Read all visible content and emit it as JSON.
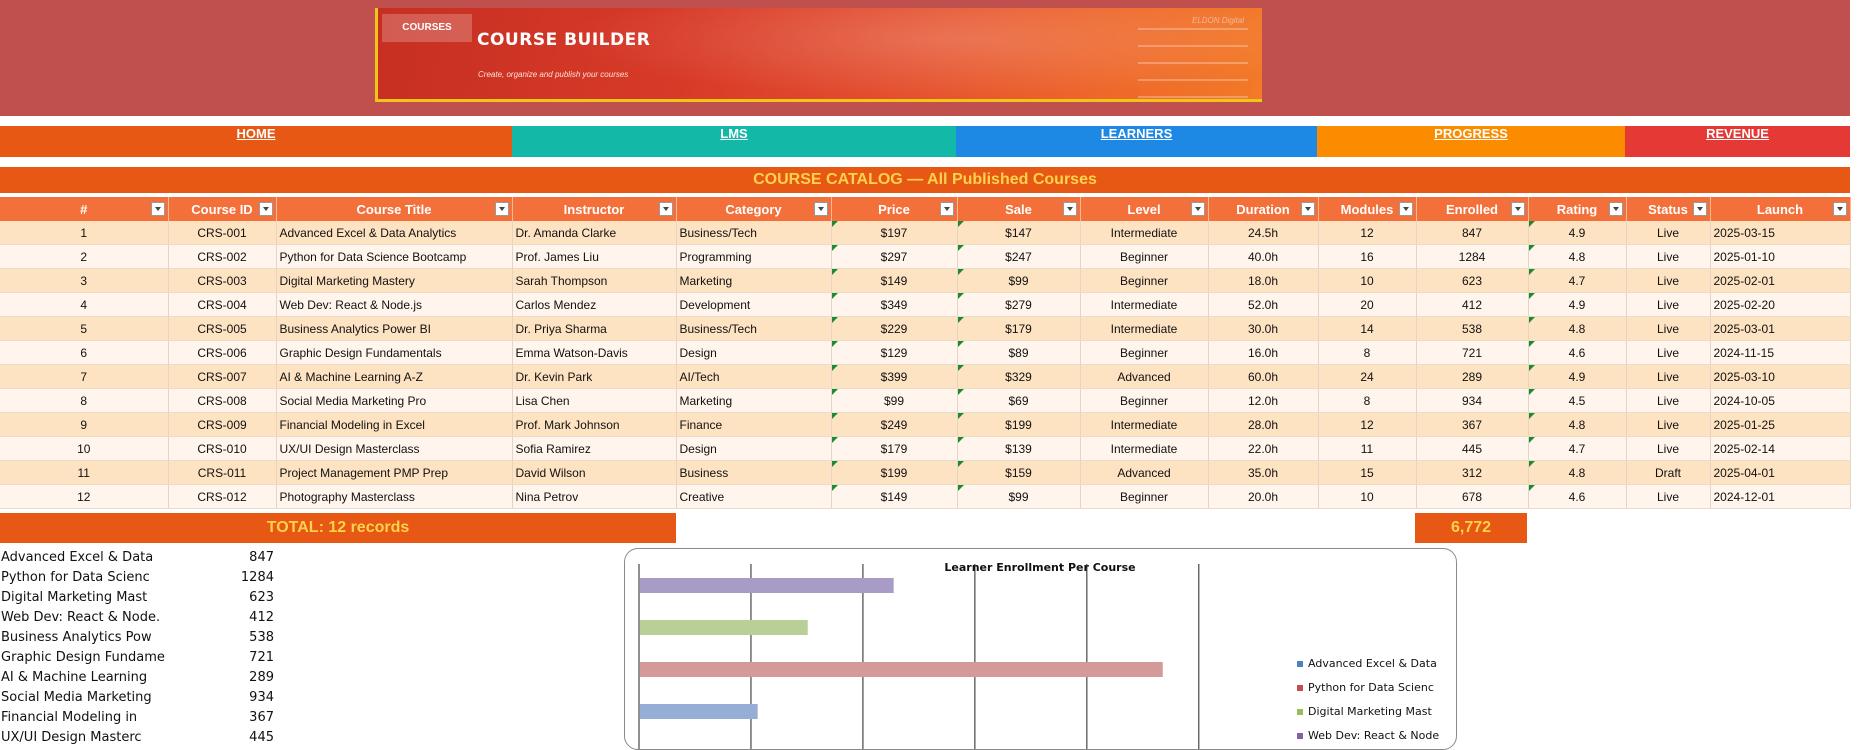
{
  "banner": {
    "tag": "COURSES",
    "title": "COURSE BUILDER",
    "subtitle": "Create, organize and publish your courses",
    "brand": "ELDON Digital"
  },
  "nav": [
    {
      "label": "HOME",
      "color": "#e75814"
    },
    {
      "label": "LMS",
      "color": "#14b8a6"
    },
    {
      "label": "LEARNERS",
      "color": "#1e88e5"
    },
    {
      "label": "PROGRESS",
      "color": "#fb8c00"
    },
    {
      "label": "REVENUE",
      "color": "#e53935"
    }
  ],
  "catalog_title": "COURSE CATALOG — All Published Courses",
  "columns": [
    "#",
    "Course ID",
    "Course Title",
    "Instructor",
    "Category",
    "Price",
    "Sale",
    "Level",
    "Duration",
    "Modules",
    "Enrolled",
    "Rating",
    "Status",
    "Launch"
  ],
  "rows": [
    [
      "1",
      "CRS-001",
      "Advanced Excel & Data Analytics",
      "Dr. Amanda Clarke",
      "Business/Tech",
      "$197",
      "$147",
      "Intermediate",
      "24.5h",
      "12",
      "847",
      "4.9",
      "Live",
      "2025-03-15"
    ],
    [
      "2",
      "CRS-002",
      "Python for Data Science Bootcamp",
      "Prof. James Liu",
      "Programming",
      "$297",
      "$247",
      "Beginner",
      "40.0h",
      "16",
      "1284",
      "4.8",
      "Live",
      "2025-01-10"
    ],
    [
      "3",
      "CRS-003",
      "Digital Marketing Mastery",
      "Sarah Thompson",
      "Marketing",
      "$149",
      "$99",
      "Beginner",
      "18.0h",
      "10",
      "623",
      "4.7",
      "Live",
      "2025-02-01"
    ],
    [
      "4",
      "CRS-004",
      "Web Dev: React & Node.js",
      "Carlos Mendez",
      "Development",
      "$349",
      "$279",
      "Intermediate",
      "52.0h",
      "20",
      "412",
      "4.9",
      "Live",
      "2025-02-20"
    ],
    [
      "5",
      "CRS-005",
      "Business Analytics Power BI",
      "Dr. Priya Sharma",
      "Business/Tech",
      "$229",
      "$179",
      "Intermediate",
      "30.0h",
      "14",
      "538",
      "4.8",
      "Live",
      "2025-03-01"
    ],
    [
      "6",
      "CRS-006",
      "Graphic Design Fundamentals",
      "Emma Watson-Davis",
      "Design",
      "$129",
      "$89",
      "Beginner",
      "16.0h",
      "8",
      "721",
      "4.6",
      "Live",
      "2024-11-15"
    ],
    [
      "7",
      "CRS-007",
      "AI & Machine Learning A-Z",
      "Dr. Kevin Park",
      "AI/Tech",
      "$399",
      "$329",
      "Advanced",
      "60.0h",
      "24",
      "289",
      "4.9",
      "Live",
      "2025-03-10"
    ],
    [
      "8",
      "CRS-008",
      "Social Media Marketing Pro",
      "Lisa Chen",
      "Marketing",
      "$99",
      "$69",
      "Beginner",
      "12.0h",
      "8",
      "934",
      "4.5",
      "Live",
      "2024-10-05"
    ],
    [
      "9",
      "CRS-009",
      "Financial Modeling in Excel",
      "Prof. Mark Johnson",
      "Finance",
      "$249",
      "$199",
      "Intermediate",
      "28.0h",
      "12",
      "367",
      "4.8",
      "Live",
      "2025-01-25"
    ],
    [
      "10",
      "CRS-010",
      "UX/UI Design Masterclass",
      "Sofia Ramirez",
      "Design",
      "$179",
      "$139",
      "Intermediate",
      "22.0h",
      "11",
      "445",
      "4.7",
      "Live",
      "2025-02-14"
    ],
    [
      "11",
      "CRS-011",
      "Project Management PMP Prep",
      "David Wilson",
      "Business",
      "$199",
      "$159",
      "Advanced",
      "35.0h",
      "15",
      "312",
      "4.8",
      "Draft",
      "2025-04-01"
    ],
    [
      "12",
      "CRS-012",
      "Photography Masterclass",
      "Nina Petrov",
      "Creative",
      "$149",
      "$99",
      "Beginner",
      "20.0h",
      "10",
      "678",
      "4.6",
      "Live",
      "2024-12-01"
    ]
  ],
  "total_label": "TOTAL: 12 records",
  "total_enrolled": "6,772",
  "enroll_list": [
    {
      "name": "Advanced Excel & Data",
      "value": "847"
    },
    {
      "name": "Python for Data Scienc",
      "value": "1284"
    },
    {
      "name": "Digital Marketing Mast",
      "value": "623"
    },
    {
      "name": "Web Dev: React & Node.",
      "value": "412"
    },
    {
      "name": "Business Analytics Pow",
      "value": "538"
    },
    {
      "name": "Graphic Design Fundame",
      "value": "721"
    },
    {
      "name": "AI & Machine Learning",
      "value": "289"
    },
    {
      "name": "Social Media Marketing",
      "value": "934"
    },
    {
      "name": "Financial Modeling in",
      "value": "367"
    },
    {
      "name": "UX/UI Design Masterc",
      "value": "445"
    }
  ],
  "chart_data": {
    "type": "bar",
    "orientation": "horizontal",
    "title": "Learner Enrollment Per Course",
    "visible_bars": [
      {
        "value": 623,
        "color": "#a89bc6"
      },
      {
        "value": 412,
        "color": "#b9cf95"
      },
      {
        "value": 1284,
        "color": "#d49a9a"
      },
      {
        "value": 289,
        "color": "#96aed6"
      }
    ],
    "xlim": [
      0,
      1400
    ],
    "x_step": 275,
    "grid": true,
    "legend": [
      {
        "name": "Advanced Excel & Data",
        "color": "#4f81bd"
      },
      {
        "name": "Python for Data Scienc",
        "color": "#c0504d"
      },
      {
        "name": "Digital Marketing Mast",
        "color": "#9bbb59"
      },
      {
        "name": "Web Dev: React & Node",
        "color": "#8064a2"
      }
    ],
    "legend_position": "right"
  }
}
